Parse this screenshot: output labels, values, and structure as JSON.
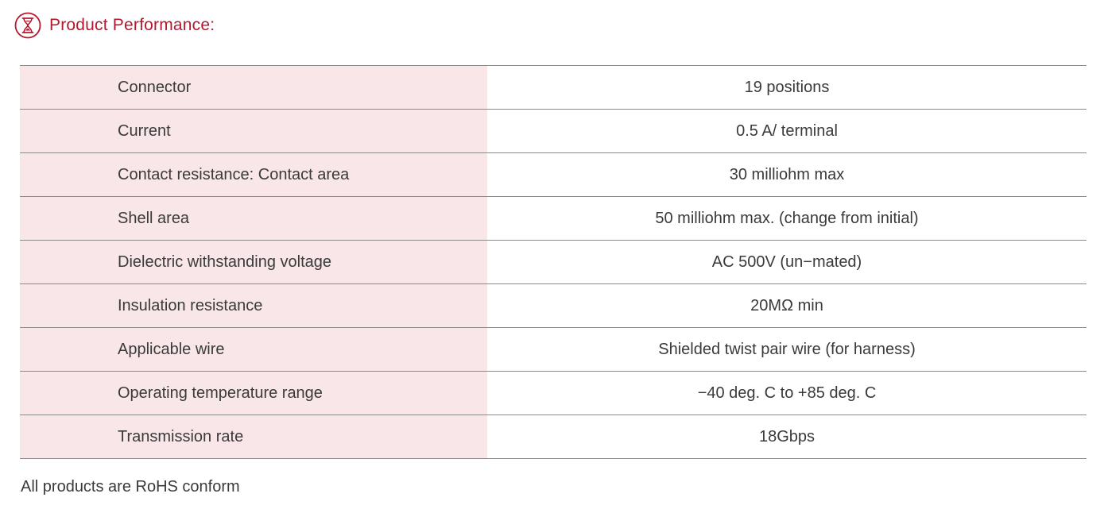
{
  "header": {
    "title": "Product Performance:",
    "icon": "hourglass-icon",
    "accent_color": "#b5182e"
  },
  "spec_table": {
    "label_bg_color": "#f8e6e8",
    "rows": [
      {
        "label": "Connector",
        "value": "19 positions"
      },
      {
        "label": "Current",
        "value": "0.5 A/ terminal"
      },
      {
        "label": "Contact resistance: Contact area",
        "value": "30 milliohm max"
      },
      {
        "label": "Shell area",
        "value": "50 milliohm max. (change from initial)"
      },
      {
        "label": "Dielectric withstanding voltage",
        "value": "AC 500V (un−mated)"
      },
      {
        "label": "Insulation resistance",
        "value": "20MΩ  min"
      },
      {
        "label": "Applicable wire",
        "value": "Shielded twist pair wire (for harness)"
      },
      {
        "label": "Operating temperature range",
        "value": "−40 deg. C to +85 deg. C"
      },
      {
        "label": "Transmission rate",
        "value": "18Gbps"
      }
    ]
  },
  "footnote": "All products are RoHS conform"
}
